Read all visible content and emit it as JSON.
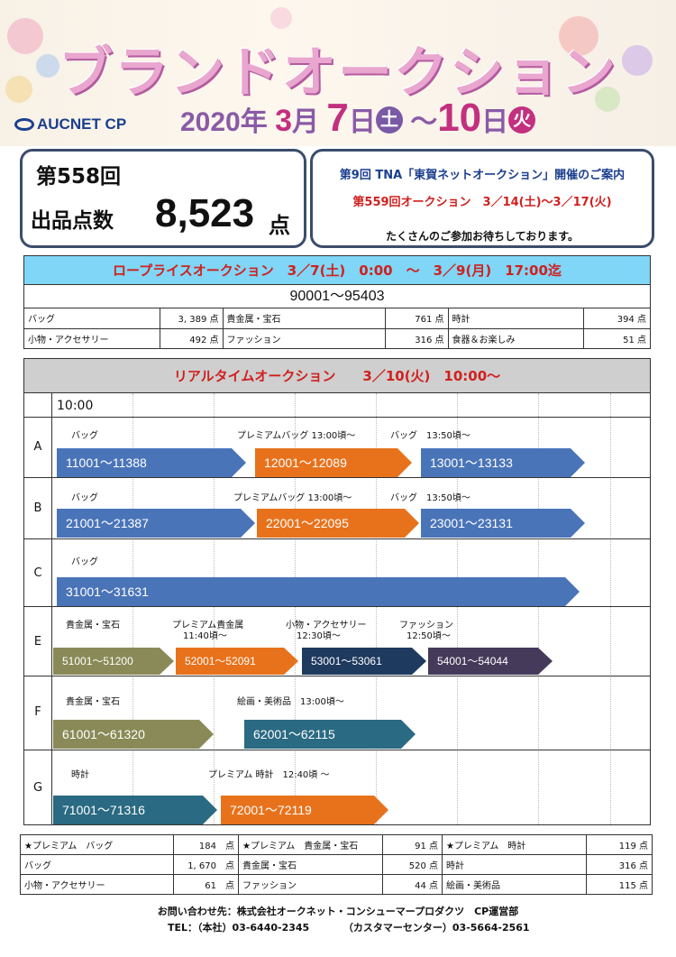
{
  "header": {
    "title": "ブランドオークション",
    "logo": "AUCNET CP",
    "date": {
      "year": "2020年",
      "month": "3",
      "month_unit": "月",
      "start_day": "7",
      "day_unit": "日",
      "start_dow": "土",
      "tilde": "～",
      "end_day": "10",
      "end_unit": "日",
      "end_dow": "火"
    }
  },
  "summary": {
    "round": "第558回",
    "count_label": "出品点数",
    "count": "8,523",
    "count_unit": "点"
  },
  "notice": {
    "line1": "第9回 TNA「東賀ネットオークション」開催のご案内",
    "line2": "第559回オークション　3／14(土)～3／17(火)",
    "line3": "たくさんのご参加お待ちしております。"
  },
  "low_price": {
    "heading": "ロープライスオークション　3／7(土)　0:00　～　3／9(月)　17:00迄",
    "range": "90001～95403",
    "rows": [
      [
        {
          "name": "バッグ",
          "count": "3, 389 点"
        },
        {
          "name": "貴金属・宝石",
          "count": "761 点"
        },
        {
          "name": "時計",
          "count": "394 点"
        }
      ],
      [
        {
          "name": "小物・アクセサリー",
          "count": "492 点"
        },
        {
          "name": "ファッション",
          "count": "316 点"
        },
        {
          "name": "食器＆お楽しみ",
          "count": "51 点"
        }
      ]
    ]
  },
  "realtime": {
    "heading": "リアルタイムオークション　　3／10(火)　10:00～",
    "start_time": "10:00",
    "rows": [
      {
        "label": "A",
        "sections": [
          {
            "title": "バッグ",
            "range": "11001～11388",
            "color": "#4a74b8"
          },
          {
            "title": "プレミアムバッグ 13:00頃～",
            "range": "12001～12089",
            "color": "#e8721c"
          },
          {
            "title": "バッグ　13:50頃～",
            "range": "13001～13133",
            "color": "#4a74b8"
          }
        ]
      },
      {
        "label": "B",
        "sections": [
          {
            "title": "バッグ",
            "range": "21001～21387",
            "color": "#4a74b8"
          },
          {
            "title": "プレミアムバッグ 13:00頃～",
            "range": "22001～22095",
            "color": "#e8721c"
          },
          {
            "title": "バッグ　13:50頃～",
            "range": "23001～23131",
            "color": "#4a74b8"
          }
        ]
      },
      {
        "label": "C",
        "sections": [
          {
            "title": "バッグ",
            "range": "31001～31631",
            "color": "#4a74b8"
          }
        ]
      },
      {
        "label": "E",
        "sections": [
          {
            "title": "貴金属・宝石",
            "subtitle": "",
            "range": "51001～51200",
            "color": "#8a8a58"
          },
          {
            "title": "プレミアム貴金属",
            "subtitle": "11:40頃～",
            "range": "52001～52091",
            "color": "#e8721c"
          },
          {
            "title": "小物・アクセサリー",
            "subtitle": "12:30頃～",
            "range": "53001～53061",
            "color": "#1f3a5f"
          },
          {
            "title": "ファッション",
            "subtitle": "12:50頃～",
            "range": "54001～54044",
            "color": "#463a5a"
          }
        ]
      },
      {
        "label": "F",
        "sections": [
          {
            "title": "貴金属・宝石",
            "range": "61001～61320",
            "color": "#8a8a58"
          },
          {
            "title": "絵画・美術品　13:00頃～",
            "range": "62001～62115",
            "color": "#2a6a82"
          }
        ]
      },
      {
        "label": "G",
        "sections": [
          {
            "title": "時計",
            "range": "71001～71316",
            "color": "#2a6a82"
          },
          {
            "title": "プレミアム 時計　12:40頃 ～",
            "range": "72001～72119",
            "color": "#e8721c"
          }
        ]
      }
    ]
  },
  "bottom_table": {
    "rows": [
      [
        {
          "name": "★プレミアム　バッグ",
          "count": "184　点"
        },
        {
          "name": "★プレミアム　貴金属・宝石",
          "count": "91 点"
        },
        {
          "name": "★プレミアム　時計",
          "count": "119 点"
        }
      ],
      [
        {
          "name": "バッグ",
          "count": "1, 670　点"
        },
        {
          "name": "貴金属・宝石",
          "count": "520 点"
        },
        {
          "name": "時計",
          "count": "316 点"
        }
      ],
      [
        {
          "name": "小物・アクセサリー",
          "count": "61　点"
        },
        {
          "name": "ファッション",
          "count": "44 点"
        },
        {
          "name": "絵画・美術品",
          "count": "115 点"
        }
      ]
    ]
  },
  "footer": {
    "contact": "お問い合わせ先：株式会社オークネット・コンシューマープロダクツ　CP運営部",
    "tel_main": "TEL：（本社）03-6440-2345",
    "tel_center": "（カスタマーセンター）03-5664-2561"
  },
  "colors": {
    "title": "#e9a6cf",
    "date": "#8a5aa6",
    "accent_red": "#d0201f",
    "header_cyan": "#7fd6f6"
  }
}
